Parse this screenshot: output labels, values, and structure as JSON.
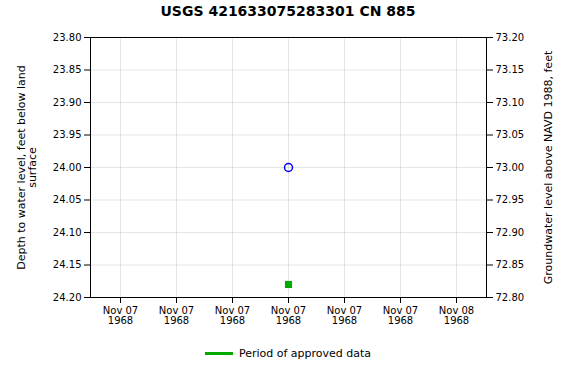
{
  "chart_data": {
    "type": "scatter",
    "title": "USGS 421633075283301 CN 885",
    "ylabel": "Depth to water level, feet below land\nsurface",
    "y2label": "Groundwater level above NAVD 1988, feet",
    "categories": [
      "Nov 07\n1968",
      "Nov 07\n1968",
      "Nov 07\n1968",
      "Nov 07\n1968",
      "Nov 07\n1968",
      "Nov 07\n1968",
      "Nov 08\n1968"
    ],
    "series": [
      {
        "color": "blue",
        "marker": "circle",
        "values": [
          null,
          null,
          null,
          24.0,
          null,
          null,
          null
        ]
      },
      {
        "name": "Period of approved data",
        "color": "#00aa00",
        "marker": "square",
        "values": [
          null,
          null,
          null,
          24.18,
          null,
          null,
          null
        ]
      }
    ],
    "ylim": [
      24.2,
      23.8
    ],
    "yticks": [
      {
        "value": 23.8,
        "label": "23.80"
      },
      23.85,
      {
        "value": 23.9,
        "label": "23.90"
      },
      23.95,
      {
        "value": 24.0,
        "label": "24.00"
      },
      24.05,
      {
        "value": 24.1,
        "label": "24.10"
      },
      24.15,
      {
        "value": 24.2,
        "label": "24.20"
      }
    ],
    "y2lim": [
      72.8,
      73.2
    ],
    "y2ticks": [
      {
        "value": 72.8,
        "label": "72.80"
      },
      72.85,
      {
        "value": 72.9,
        "label": "72.90"
      },
      72.95,
      {
        "value": 73.0,
        "label": "73.00"
      },
      73.05,
      {
        "value": 73.1,
        "label": "73.10"
      },
      73.15,
      {
        "value": 73.2,
        "label": "73.20"
      }
    ],
    "grid": true,
    "legend": "bottom"
  }
}
